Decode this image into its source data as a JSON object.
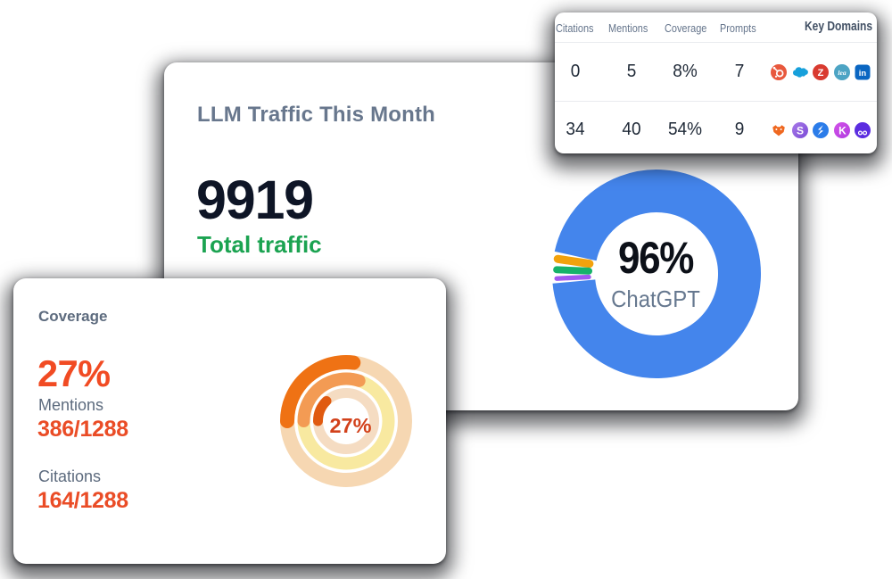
{
  "colors": {
    "card_bg": "#ffffff",
    "page_bg": "#ffffff",
    "heading_gray_blue": "#68778d",
    "number_dark": "#0e1526",
    "green_accent": "#1ba351",
    "orange_red_accent": "#f14b23",
    "donut_blue": "#4485ec",
    "donut_orange": "#f2a20d",
    "donut_green": "#17b26a",
    "donut_purple": "#a159f0",
    "gauge_outer_arc": "#ef7214",
    "gauge_outer_track": "#f6d7b2",
    "gauge_middle_arc": "#f39b54",
    "gauge_middle_track": "#f8e9a0",
    "gauge_inner_arc": "#e05a10",
    "gauge_inner_track": "#f5dcc2"
  },
  "traffic_card": {
    "title": "LLM Traffic This Month",
    "total_value": "9919",
    "total_label": "Total traffic",
    "donut_center_value": "96%",
    "donut_center_label": "ChatGPT"
  },
  "table_card": {
    "headers": {
      "citations": "Citations",
      "mentions": "Mentions",
      "coverage": "Coverage",
      "prompts": "Prompts",
      "key_domains": "Key Domains"
    },
    "rows": [
      {
        "citations": "0",
        "mentions": "5",
        "coverage": "8%",
        "prompts": "7",
        "domain_icons": [
          "hubspot",
          "salesforce",
          "zendesk",
          "leadfeeder",
          "linkedin"
        ]
      },
      {
        "citations": "34",
        "mentions": "40",
        "coverage": "54%",
        "prompts": "9",
        "domain_icons": [
          "fox-orange",
          "s-purple",
          "s-blue",
          "k-magenta",
          "owl-purple"
        ]
      }
    ]
  },
  "coverage_card": {
    "title": "Coverage",
    "percent": "27%",
    "mentions_label": "Mentions",
    "mentions_value": "386/1288",
    "citations_label": "Citations",
    "citations_value": "164/1288",
    "gauge_center_value": "27%"
  },
  "chart_data": [
    {
      "type": "pie",
      "title": "LLM Traffic This Month",
      "center_value": "96%",
      "center_label": "ChatGPT",
      "series": [
        {
          "name": "ChatGPT",
          "value": 96.35,
          "color": "#4485ec"
        },
        {
          "name": "",
          "value": 1.55,
          "color": "#f2a20d"
        },
        {
          "name": "",
          "value": 1.35,
          "color": "#17b26a"
        },
        {
          "name": "",
          "value": 0.9,
          "color": "#a159f0"
        }
      ],
      "legend_position": "none",
      "donut": true
    },
    {
      "type": "pie",
      "title": "Coverage",
      "center_value": "27%",
      "rings": [
        {
          "name": "Coverage",
          "percent": 27.0,
          "color": "#ef7214",
          "track": "#f6d7b2"
        },
        {
          "name": "Mentions",
          "percent": 30.0,
          "color": "#f39b54",
          "track": "#f8e9a0"
        },
        {
          "name": "Citations",
          "percent": 12.7,
          "color": "#e05a10",
          "track": "#f5dcc2"
        }
      ],
      "donut": true
    }
  ]
}
